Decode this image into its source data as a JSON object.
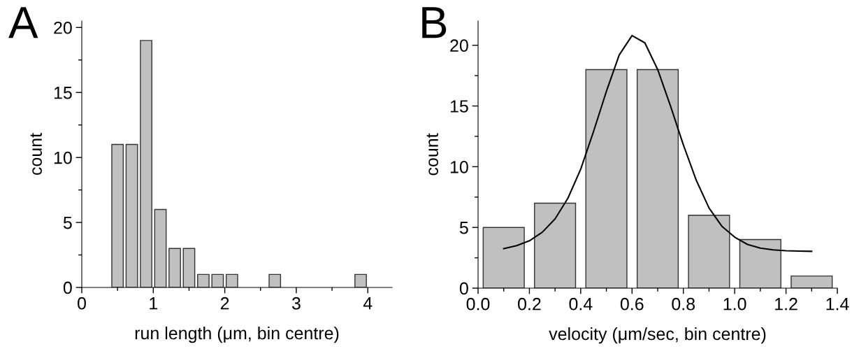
{
  "chart_data": [
    {
      "type": "bar",
      "xlabel": "run length (μm, bin centre)",
      "ylabel": "count",
      "annotations": [
        "A"
      ],
      "series": [
        {
          "color": "#c0c0c0",
          "x": [
            0.5,
            0.7,
            0.9,
            1.1,
            1.3,
            1.5,
            1.7,
            1.9,
            2.1,
            2.7,
            3.9
          ],
          "values": [
            11,
            11,
            19,
            6,
            3,
            3,
            1,
            1,
            1,
            1,
            1
          ]
        }
      ],
      "xlim": [
        0,
        4.34
      ],
      "ylim": [
        0,
        20.5
      ],
      "xticks": [
        0,
        {
          "value": 0.5,
          "label": null
        },
        1,
        {
          "value": 1.5,
          "label": null
        },
        2,
        {
          "value": 2.5,
          "label": null
        },
        3,
        {
          "value": 3.5,
          "label": null
        },
        4
      ],
      "yticks": [
        0,
        {
          "value": 2.5,
          "label": null
        },
        5,
        {
          "value": 7.5,
          "label": null
        },
        10,
        {
          "value": 12.5,
          "label": null
        },
        15,
        {
          "value": 17.5,
          "label": null
        },
        20
      ],
      "grid": false,
      "legend": false
    },
    {
      "type": "bar",
      "xlabel": "velocity (μm/sec, bin centre)",
      "ylabel": "count",
      "annotations": [
        "B"
      ],
      "series": [
        {
          "color": "#c0c0c0",
          "x": [
            0.1,
            0.3,
            0.5,
            0.7,
            0.9,
            1.1,
            1.3
          ],
          "values": [
            5,
            7,
            18,
            18,
            6,
            4,
            1
          ]
        },
        {
          "type": "line",
          "color": "#000000",
          "marker": "none",
          "x": [
            0.1,
            0.15,
            0.2,
            0.25,
            0.3,
            0.35,
            0.4,
            0.45,
            0.5,
            0.55,
            0.6,
            0.65,
            0.7,
            0.75,
            0.8,
            0.85,
            0.9,
            0.95,
            1.0,
            1.05,
            1.1,
            1.15,
            1.2,
            1.25,
            1.3
          ],
          "values": [
            3.25,
            3.5,
            3.9,
            4.6,
            5.7,
            7.4,
            9.8,
            12.9,
            16.2,
            19.2,
            20.8,
            20.2,
            18.0,
            15.0,
            11.8,
            8.9,
            6.6,
            5.1,
            4.2,
            3.6,
            3.3,
            3.15,
            3.08,
            3.05,
            3.03
          ]
        }
      ],
      "xlim": [
        0,
        1.4
      ],
      "ylim": [
        0,
        22
      ],
      "xticks": [
        {
          "value": 0.0,
          "label": "0.0"
        },
        {
          "value": 0.1,
          "label": null
        },
        0.2,
        {
          "value": 0.3,
          "label": null
        },
        0.4,
        {
          "value": 0.5,
          "label": null
        },
        0.6,
        {
          "value": 0.7,
          "label": null
        },
        0.8,
        {
          "value": 0.9,
          "label": null
        },
        {
          "value": 1.0,
          "label": "1.0"
        },
        {
          "value": 1.1,
          "label": null
        },
        1.2,
        {
          "value": 1.3,
          "label": null
        },
        1.4
      ],
      "yticks": [
        0,
        {
          "value": 2.5,
          "label": null
        },
        5,
        {
          "value": 7.5,
          "label": null
        },
        10,
        {
          "value": 12.5,
          "label": null
        },
        15,
        {
          "value": 17.5,
          "label": null
        },
        20
      ],
      "grid": false,
      "legend": false
    }
  ]
}
